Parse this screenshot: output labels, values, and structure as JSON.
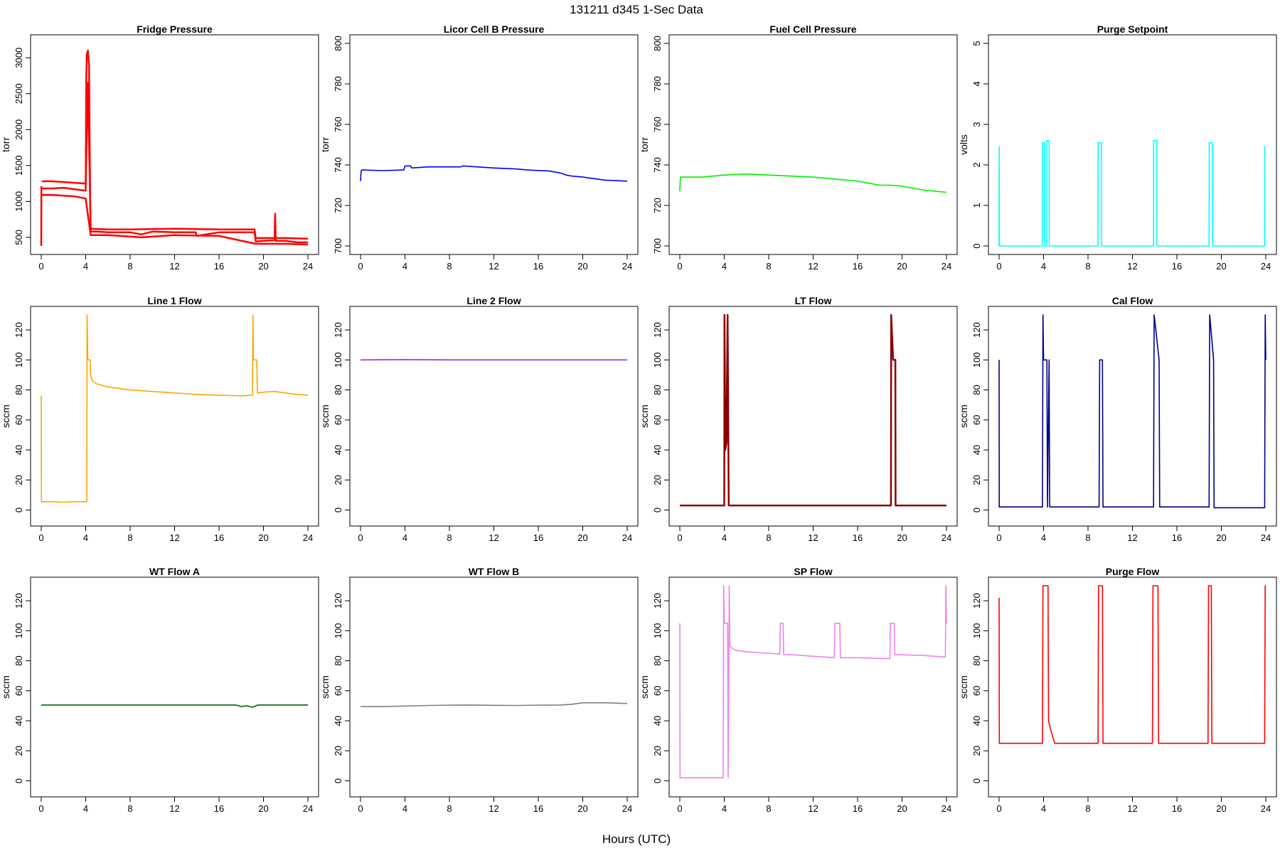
{
  "figure": {
    "title": "131211    d345    1-Sec Data",
    "xlabel": "Hours (UTC)"
  },
  "chart_data": [
    {
      "type": "line",
      "title": "Fridge Pressure",
      "ylabel": "torr",
      "color": "#ff0000",
      "xlim": [
        0,
        24
      ],
      "ylim": [
        380,
        3200
      ],
      "xticks": [
        0,
        4,
        8,
        12,
        16,
        20,
        24
      ],
      "yticks": [
        500,
        1000,
        1500,
        2000,
        2500,
        3000
      ],
      "series": [
        {
          "x": [
            0,
            0.01,
            0.05,
            1,
            2,
            3,
            4,
            4.05,
            4.1,
            4.2,
            4.3,
            4.4,
            4.45,
            5,
            6,
            8,
            9,
            10,
            12,
            13.9,
            14,
            16,
            18,
            19.2,
            19.3,
            20,
            21,
            21.05,
            21.1,
            22,
            23,
            24
          ],
          "y": [
            380,
            1200,
            1180,
            1180,
            1190,
            1170,
            1150,
            2700,
            3050,
            3100,
            2900,
            1000,
            580,
            580,
            570,
            570,
            540,
            580,
            570,
            570,
            520,
            570,
            570,
            570,
            440,
            450,
            460,
            830,
            450,
            450,
            430,
            430
          ]
        },
        {
          "x": [
            0.05,
            1,
            2,
            3,
            4,
            4.2,
            4.45,
            6,
            8,
            12,
            16,
            19.2,
            19.3,
            22,
            24
          ],
          "y": [
            1280,
            1280,
            1270,
            1260,
            1250,
            2650,
            620,
            610,
            610,
            620,
            610,
            610,
            490,
            490,
            480
          ]
        },
        {
          "x": [
            0.05,
            1,
            2,
            3,
            4,
            4.45,
            6,
            9,
            12,
            16,
            19.3,
            22,
            24
          ],
          "y": [
            1090,
            1090,
            1080,
            1070,
            1040,
            530,
            530,
            500,
            530,
            520,
            410,
            410,
            400
          ]
        }
      ]
    },
    {
      "type": "line",
      "title": "Licor Cell B Pressure",
      "ylabel": "torr",
      "color": "#0000ff",
      "xlim": [
        0,
        24
      ],
      "ylim": [
        700,
        800
      ],
      "xticks": [
        0,
        4,
        8,
        12,
        16,
        20,
        24
      ],
      "yticks": [
        700,
        720,
        740,
        760,
        780,
        800
      ],
      "series": [
        {
          "x": [
            0,
            0.05,
            0.1,
            2,
            3.9,
            4,
            4.5,
            4.6,
            6,
            9,
            9.2,
            12,
            14,
            15,
            17,
            18,
            18.5,
            19,
            20,
            22,
            24
          ],
          "y": [
            732,
            737,
            737.5,
            737.2,
            737.5,
            739.5,
            739.5,
            738.5,
            739,
            739,
            739.5,
            738.5,
            738,
            737.5,
            737,
            736,
            735,
            734.5,
            734,
            732.5,
            732
          ]
        }
      ]
    },
    {
      "type": "line",
      "title": "Fuel Cell Pressure",
      "ylabel": "torr",
      "color": "#00ee00",
      "xlim": [
        0,
        24
      ],
      "ylim": [
        700,
        800
      ],
      "xticks": [
        0,
        4,
        8,
        12,
        16,
        20,
        24
      ],
      "yticks": [
        700,
        720,
        740,
        760,
        780,
        800
      ],
      "series": [
        {
          "x": [
            0,
            0.05,
            0.1,
            2,
            4,
            6,
            8,
            10,
            12,
            14,
            16,
            18,
            19,
            20,
            22,
            24
          ],
          "y": [
            727,
            734,
            734,
            734,
            735,
            735.5,
            735,
            734.5,
            734,
            733,
            732,
            730,
            730,
            729.5,
            727.5,
            726.5
          ]
        }
      ]
    },
    {
      "type": "line",
      "title": "Purge Setpoint",
      "ylabel": "volts",
      "color": "#00ffff",
      "xlim": [
        0,
        24
      ],
      "ylim": [
        0,
        5
      ],
      "xticks": [
        0,
        4,
        8,
        12,
        16,
        20,
        24
      ],
      "yticks": [
        0,
        1,
        2,
        3,
        4,
        5
      ],
      "series": [
        {
          "x": [
            0,
            0.01,
            0.02,
            0.03,
            3.9,
            3.91,
            4.1,
            4.11,
            4.3,
            4.31,
            4.5,
            4.51,
            8.9,
            8.91,
            9.2,
            9.21,
            13.9,
            13.91,
            14.2,
            14.21,
            18.9,
            18.91,
            19.2,
            19.21,
            23.9,
            23.91,
            24
          ],
          "y": [
            0,
            2.45,
            2.45,
            0,
            0,
            2.55,
            2.55,
            0,
            0,
            2.6,
            2.6,
            0,
            0,
            2.55,
            2.55,
            0,
            0,
            2.6,
            2.6,
            0,
            0,
            2.55,
            2.55,
            0,
            0,
            2.45,
            2.45
          ]
        }
      ]
    },
    {
      "type": "line",
      "title": "Line 1 Flow",
      "ylabel": "sccm",
      "color": "#ffa500",
      "xlim": [
        0,
        24
      ],
      "ylim": [
        -5,
        130
      ],
      "xticks": [
        0,
        4,
        8,
        12,
        16,
        20,
        24
      ],
      "yticks": [
        0,
        20,
        40,
        60,
        80,
        100,
        120
      ],
      "series": [
        {
          "x": [
            0,
            0.02,
            0.05,
            1,
            2,
            3,
            4.1,
            4.12,
            4.2,
            4.4,
            4.45,
            4.6,
            5,
            6,
            8,
            10,
            12,
            14,
            16,
            18,
            19,
            19.05,
            19.1,
            19.4,
            19.45,
            19.6,
            20,
            21,
            22,
            23,
            24
          ],
          "y": [
            76,
            6,
            5.5,
            5.5,
            5.2,
            5.5,
            5.5,
            130,
            100,
            100,
            90,
            86,
            84,
            82,
            80,
            79,
            78,
            77,
            76.5,
            76,
            76.5,
            130,
            100,
            100,
            78,
            78,
            78.5,
            79,
            78,
            77,
            76.5
          ]
        }
      ]
    },
    {
      "type": "line",
      "title": "Line 2 Flow",
      "ylabel": "sccm",
      "color": "#a020f0",
      "xlim": [
        0,
        24
      ],
      "ylim": [
        -5,
        130
      ],
      "xticks": [
        0,
        4,
        8,
        12,
        16,
        20,
        24
      ],
      "yticks": [
        0,
        20,
        40,
        60,
        80,
        100,
        120
      ],
      "series": [
        {
          "x": [
            0,
            4,
            8,
            12,
            16,
            20,
            24
          ],
          "y": [
            100,
            100.2,
            100,
            100,
            100,
            100,
            100
          ]
        }
      ]
    },
    {
      "type": "line",
      "title": "LT Flow",
      "ylabel": "sccm",
      "color": "#8b0000",
      "xlim": [
        0,
        24
      ],
      "ylim": [
        -5,
        130
      ],
      "xticks": [
        0,
        4,
        8,
        12,
        16,
        20,
        24
      ],
      "yticks": [
        0,
        20,
        40,
        60,
        80,
        100,
        120
      ],
      "series": [
        {
          "x": [
            0,
            4,
            4.02,
            4.1,
            4.2,
            4.3,
            4.4,
            4.42,
            6,
            12,
            18,
            19,
            19.02,
            19.2,
            19.4,
            19.42,
            24
          ],
          "y": [
            3,
            3,
            130,
            40,
            45,
            130,
            3,
            3,
            3,
            3,
            3,
            3,
            130,
            100,
            100,
            3,
            3
          ]
        }
      ]
    },
    {
      "type": "line",
      "title": "Cal Flow",
      "ylabel": "sccm",
      "color": "#00008b",
      "xlim": [
        0,
        24
      ],
      "ylim": [
        -5,
        130
      ],
      "xticks": [
        0,
        4,
        8,
        12,
        16,
        20,
        24
      ],
      "yticks": [
        0,
        20,
        40,
        60,
        80,
        100,
        120
      ],
      "series": [
        {
          "x": [
            0,
            0.01,
            0.05,
            3.9,
            3.95,
            4.0,
            4.3,
            4.35,
            4.5,
            4.55,
            9,
            9.05,
            9.3,
            9.35,
            13.9,
            13.95,
            14.4,
            14.45,
            18.9,
            18.95,
            19.3,
            19.35,
            23.9,
            23.95,
            24
          ],
          "y": [
            100,
            2,
            2,
            2,
            130,
            100,
            100,
            2,
            100,
            2,
            2,
            100,
            100,
            2,
            2,
            130,
            100,
            2,
            2,
            130,
            100,
            1.5,
            1.5,
            130,
            100
          ]
        }
      ]
    },
    {
      "type": "line",
      "title": "WT Flow A",
      "ylabel": "sccm",
      "color": "#006400",
      "xlim": [
        0,
        24
      ],
      "ylim": [
        -5,
        130
      ],
      "xticks": [
        0,
        4,
        8,
        12,
        16,
        20,
        24
      ],
      "yticks": [
        0,
        20,
        40,
        60,
        80,
        100,
        120
      ],
      "series": [
        {
          "x": [
            0,
            4,
            8,
            12,
            16,
            17.5,
            18,
            18.5,
            19,
            19.5,
            20,
            24
          ],
          "y": [
            50.5,
            50.5,
            50.5,
            50.5,
            50.5,
            50.5,
            49.5,
            50,
            49,
            50.5,
            50.5,
            50.5
          ]
        }
      ]
    },
    {
      "type": "line",
      "title": "WT Flow B",
      "ylabel": "sccm",
      "color": "#808080",
      "xlim": [
        0,
        24
      ],
      "ylim": [
        -5,
        130
      ],
      "xticks": [
        0,
        4,
        8,
        12,
        16,
        20,
        24
      ],
      "yticks": [
        0,
        20,
        40,
        60,
        80,
        100,
        120
      ],
      "series": [
        {
          "x": [
            0,
            2,
            4,
            6,
            8,
            10,
            12,
            14,
            16,
            18,
            19,
            20,
            22,
            24
          ],
          "y": [
            49.5,
            49.5,
            49.8,
            50.2,
            50.4,
            50.5,
            50.3,
            50.2,
            50.4,
            50.5,
            51,
            52,
            52,
            51.5
          ]
        }
      ]
    },
    {
      "type": "line",
      "title": "SP Flow",
      "ylabel": "sccm",
      "color": "#ee82ee",
      "xlim": [
        0,
        24
      ],
      "ylim": [
        -5,
        130
      ],
      "xticks": [
        0,
        4,
        8,
        12,
        16,
        20,
        24
      ],
      "yticks": [
        0,
        20,
        40,
        60,
        80,
        100,
        120
      ],
      "series": [
        {
          "x": [
            0,
            0.02,
            0.05,
            1,
            2,
            3,
            3.9,
            3.95,
            4.0,
            4.3,
            4.35,
            4.45,
            4.5,
            4.6,
            5,
            6,
            8,
            9,
            9.05,
            9.3,
            9.35,
            10,
            12,
            13.9,
            13.95,
            14.4,
            14.45,
            16,
            18,
            18.9,
            18.95,
            19.3,
            19.35,
            20,
            22,
            23.9,
            23.95,
            24
          ],
          "y": [
            105,
            2,
            2,
            2,
            2,
            2,
            2,
            130,
            105,
            105,
            2,
            130,
            90,
            89,
            87,
            86,
            85,
            84.5,
            105,
            105,
            84,
            84,
            83,
            82,
            105,
            105,
            82,
            82,
            81.5,
            81.5,
            105,
            105,
            84,
            84,
            83.5,
            82.5,
            130,
            105
          ]
        }
      ]
    },
    {
      "type": "line",
      "title": "Purge Flow",
      "ylabel": "sccm",
      "color": "#ff0000",
      "xlim": [
        0,
        24
      ],
      "ylim": [
        -5,
        130
      ],
      "xticks": [
        0,
        4,
        8,
        12,
        16,
        20,
        24
      ],
      "yticks": [
        0,
        20,
        40,
        60,
        80,
        100,
        120
      ],
      "series": [
        {
          "x": [
            0,
            0.02,
            0.05,
            2,
            3.9,
            3.95,
            4.4,
            4.45,
            4.6,
            5,
            8.9,
            8.95,
            9.3,
            9.35,
            12,
            13.8,
            13.85,
            14.3,
            14.35,
            16,
            18.8,
            18.85,
            19.1,
            19.15,
            20,
            23.9,
            23.95,
            24
          ],
          "y": [
            122,
            25,
            25,
            25,
            25,
            130,
            130,
            40,
            35,
            25,
            25,
            130,
            130,
            25,
            25,
            25,
            130,
            130,
            25,
            25,
            25,
            130,
            130,
            25,
            25,
            25,
            130,
            130
          ]
        }
      ]
    }
  ]
}
